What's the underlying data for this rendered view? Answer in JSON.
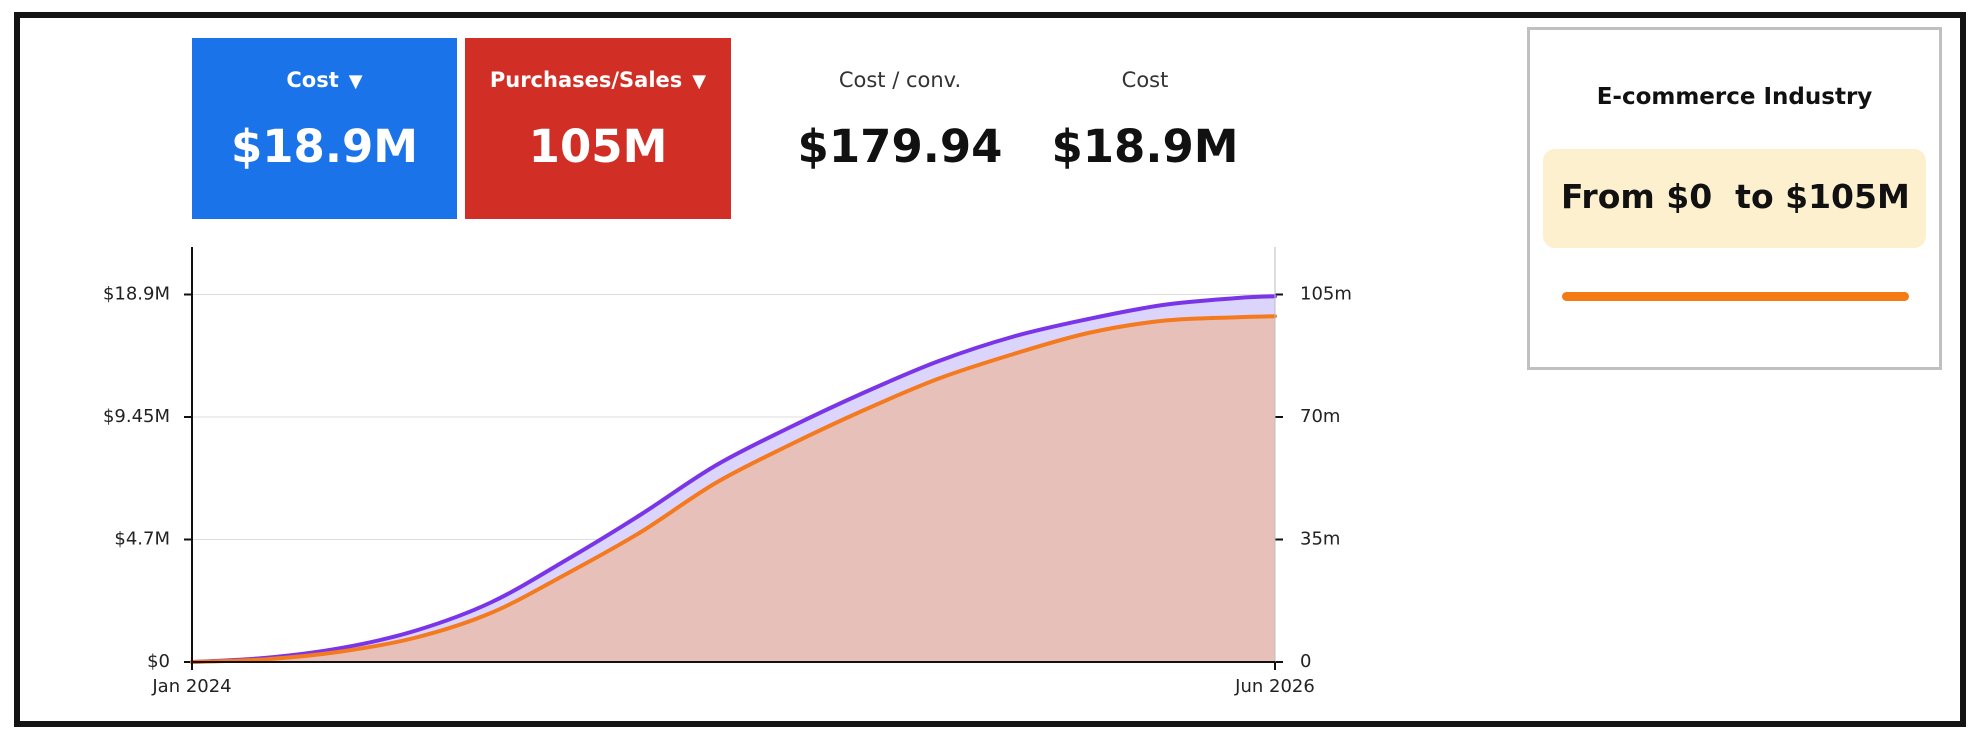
{
  "kpis": {
    "cost": {
      "label": "Cost",
      "value": "$18.9M",
      "bg": "#1a73e8",
      "dropdown_icon": "triangle-down-icon"
    },
    "purchases": {
      "label": "Purchases/Sales",
      "value": "105M",
      "bg": "#d12f25",
      "dropdown_icon": "triangle-down-icon"
    },
    "cost_per_conv": {
      "label": "Cost / conv.",
      "value": "$179.94"
    },
    "cost_plain": {
      "label": "Cost",
      "value": "$18.9M"
    }
  },
  "side_panel": {
    "title": "E-commerce Industry",
    "range_from": "From $0",
    "range_to": "to $105M",
    "range_bg": "#fdf0cf",
    "bar_color": "#f47a14"
  },
  "chart_data": {
    "type": "area",
    "x_labels": [
      "Jan 2024",
      "Jun 2026"
    ],
    "x": [
      "2024-01",
      "2024-03",
      "2024-05",
      "2024-07",
      "2024-09",
      "2024-11",
      "2025-01",
      "2025-03",
      "2025-05",
      "2025-07",
      "2025-09",
      "2025-11",
      "2026-01",
      "2026-03",
      "2026-05",
      "2026-06"
    ],
    "left_axis": {
      "ticks": [
        0,
        4.7,
        9.45,
        18.9
      ],
      "tick_labels": [
        "$0",
        "$4.7M",
        "$9.45M",
        "$18.9M"
      ]
    },
    "right_axis": {
      "ticks": [
        0,
        35,
        70,
        105
      ],
      "tick_labels": [
        "0",
        "35m",
        "70m",
        "105m"
      ]
    },
    "series": [
      {
        "axis": "right",
        "color": "#7a35e8",
        "fill": "#dcd5fb",
        "values": [
          0,
          1.2,
          4,
          9,
          17,
          29,
          42,
          56,
          67,
          77,
          86,
          93,
          98,
          102,
          104,
          104.5
        ]
      },
      {
        "axis": "right",
        "color": "#f47a1f",
        "fill": "#e8c0ba",
        "values": [
          0,
          0.8,
          3,
          7,
          14,
          25,
          37,
          51,
          62,
          72,
          81,
          88,
          94,
          97.5,
          98.5,
          98.8
        ]
      }
    ],
    "grid": true,
    "legend": "none"
  }
}
